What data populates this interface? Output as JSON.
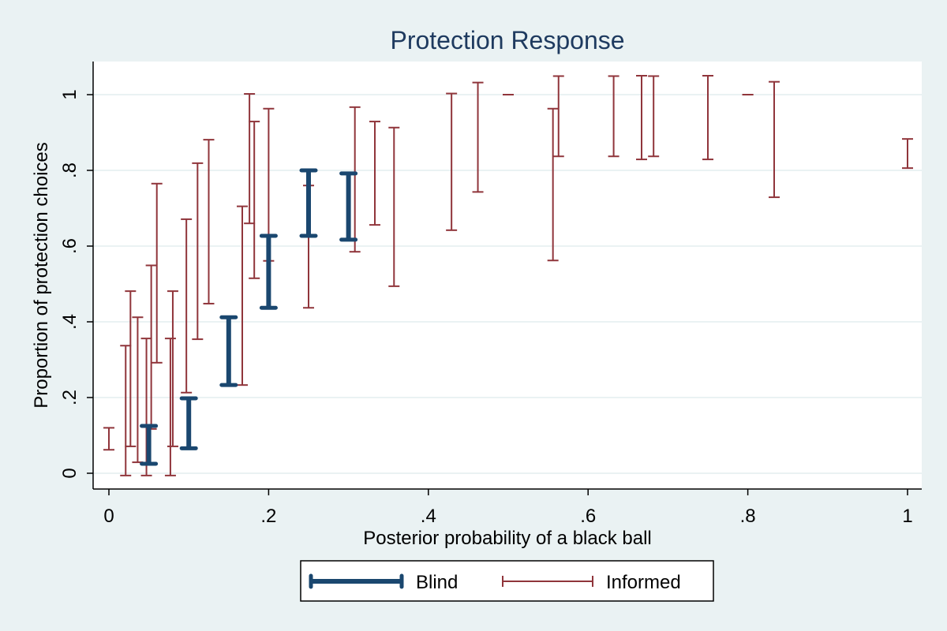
{
  "chart_data": {
    "type": "errorbar",
    "title": "Protection Response",
    "xlabel": "Posterior probability of a black ball",
    "ylabel": "Proportion of protection choices",
    "xlim": [
      -0.04,
      1.02
    ],
    "ylim": [
      -0.04,
      1.09
    ],
    "xticks": [
      {
        "v": 0,
        "label": "0"
      },
      {
        "v": 0.2,
        "label": ".2"
      },
      {
        "v": 0.4,
        "label": ".4"
      },
      {
        "v": 0.6,
        "label": ".6"
      },
      {
        "v": 0.8,
        "label": ".8"
      },
      {
        "v": 1,
        "label": "1"
      }
    ],
    "yticks": [
      {
        "v": 0,
        "label": "0"
      },
      {
        "v": 0.2,
        "label": ".2"
      },
      {
        "v": 0.4,
        "label": ".4"
      },
      {
        "v": 0.6,
        "label": ".6"
      },
      {
        "v": 0.8,
        "label": ".8"
      },
      {
        "v": 1,
        "label": "1"
      }
    ],
    "grid": true,
    "legend_position": "bottom",
    "series": [
      {
        "name": "Blind",
        "color": "#1a476f",
        "style": "thick",
        "points": [
          {
            "x": 0.05,
            "lo": 0.025,
            "hi": 0.125
          },
          {
            "x": 0.1,
            "lo": 0.066,
            "hi": 0.198
          },
          {
            "x": 0.15,
            "lo": 0.233,
            "hi": 0.412
          },
          {
            "x": 0.2,
            "lo": 0.437,
            "hi": 0.627
          },
          {
            "x": 0.25,
            "lo": 0.627,
            "hi": 0.8
          },
          {
            "x": 0.3,
            "lo": 0.617,
            "hi": 0.792
          }
        ]
      },
      {
        "name": "Informed",
        "color": "#90353b",
        "style": "thin",
        "points": [
          {
            "x": 0.0,
            "lo": 0.062,
            "hi": 0.12
          },
          {
            "x": 0.021,
            "lo": -0.006,
            "hi": 0.337
          },
          {
            "x": 0.027,
            "lo": 0.071,
            "hi": 0.481
          },
          {
            "x": 0.036,
            "lo": 0.029,
            "hi": 0.412
          },
          {
            "x": 0.047,
            "lo": -0.006,
            "hi": 0.356
          },
          {
            "x": 0.053,
            "lo": 0.117,
            "hi": 0.549
          },
          {
            "x": 0.06,
            "lo": 0.292,
            "hi": 0.765
          },
          {
            "x": 0.077,
            "lo": -0.006,
            "hi": 0.356
          },
          {
            "x": 0.08,
            "lo": 0.071,
            "hi": 0.481
          },
          {
            "x": 0.097,
            "lo": 0.213,
            "hi": 0.671
          },
          {
            "x": 0.111,
            "lo": 0.354,
            "hi": 0.819
          },
          {
            "x": 0.125,
            "lo": 0.448,
            "hi": 0.881
          },
          {
            "x": 0.167,
            "lo": 0.233,
            "hi": 0.705
          },
          {
            "x": 0.176,
            "lo": 0.66,
            "hi": 1.002
          },
          {
            "x": 0.182,
            "lo": 0.515,
            "hi": 0.929
          },
          {
            "x": 0.2,
            "lo": 0.561,
            "hi": 0.963
          },
          {
            "x": 0.25,
            "lo": 0.437,
            "hi": 0.76
          },
          {
            "x": 0.308,
            "lo": 0.585,
            "hi": 0.967
          },
          {
            "x": 0.333,
            "lo": 0.656,
            "hi": 0.929
          },
          {
            "x": 0.357,
            "lo": 0.494,
            "hi": 0.913
          },
          {
            "x": 0.429,
            "lo": 0.642,
            "hi": 1.003
          },
          {
            "x": 0.462,
            "lo": 0.743,
            "hi": 1.032
          },
          {
            "x": 0.5,
            "lo": 1.0,
            "hi": 1.0
          },
          {
            "x": 0.556,
            "lo": 0.562,
            "hi": 0.963
          },
          {
            "x": 0.563,
            "lo": 0.837,
            "hi": 1.049
          },
          {
            "x": 0.632,
            "lo": 0.837,
            "hi": 1.049
          },
          {
            "x": 0.667,
            "lo": 0.829,
            "hi": 1.05
          },
          {
            "x": 0.682,
            "lo": 0.837,
            "hi": 1.049
          },
          {
            "x": 0.75,
            "lo": 0.829,
            "hi": 1.05
          },
          {
            "x": 0.8,
            "lo": 1.0,
            "hi": 1.0
          },
          {
            "x": 0.833,
            "lo": 0.729,
            "hi": 1.034
          },
          {
            "x": 1.0,
            "lo": 0.806,
            "hi": 0.883
          }
        ]
      }
    ]
  }
}
